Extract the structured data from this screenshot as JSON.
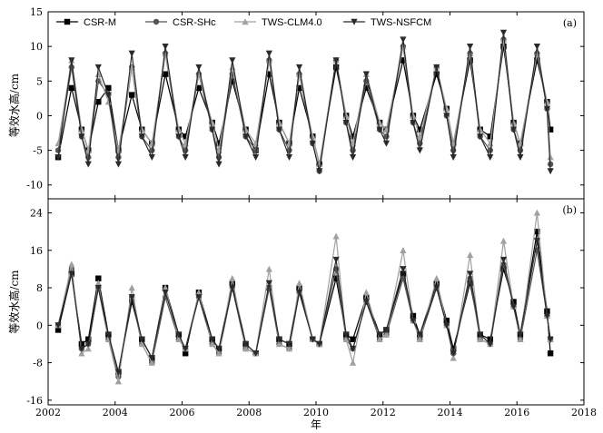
{
  "chart_data": {
    "type": "line",
    "xlabel": "年",
    "x_ticks": [
      2002,
      2004,
      2006,
      2008,
      2010,
      2012,
      2014,
      2016,
      2018
    ],
    "xlim": [
      2002,
      2018
    ],
    "legend": [
      {
        "name": "CSR-M",
        "color": "#000000",
        "marker": "square"
      },
      {
        "name": "CSR-SHc",
        "color": "#555555",
        "marker": "circle"
      },
      {
        "name": "TWS-CLM4.0",
        "color": "#a0a0a0",
        "marker": "triangle-up"
      },
      {
        "name": "TWS-NSFCM",
        "color": "#2a2a2a",
        "marker": "triangle-down"
      }
    ],
    "legend_position": "top",
    "panels": [
      {
        "tag": "(a)",
        "ylabel": "等效水高/cm",
        "ylim": [
          -12,
          15
        ],
        "y_ticks": [
          -10,
          -5,
          0,
          5,
          10,
          15
        ],
        "series": [
          {
            "name": "CSR-M",
            "x": [
              2002.3,
              2002.7,
              2003.0,
              2003.2,
              2003.5,
              2003.8,
              2004.1,
              2004.5,
              2004.8,
              2005.1,
              2005.5,
              2005.9,
              2006.1,
              2006.5,
              2006.9,
              2007.1,
              2007.5,
              2007.9,
              2008.2,
              2008.6,
              2008.9,
              2009.2,
              2009.5,
              2009.9,
              2010.1,
              2010.6,
              2010.9,
              2011.1,
              2011.5,
              2011.9,
              2012.1,
              2012.6,
              2012.9,
              2013.1,
              2013.6,
              2013.9,
              2014.1,
              2014.6,
              2014.9,
              2015.2,
              2015.6,
              2015.9,
              2016.1,
              2016.6,
              2016.9,
              2017.0
            ],
            "y": [
              -6,
              4,
              -2,
              -5,
              2,
              4,
              -5,
              3,
              -2,
              -4,
              6,
              -2,
              -3,
              4,
              -1,
              -4,
              5,
              -2,
              -5,
              6,
              -1,
              -4,
              4,
              -3,
              -7,
              7,
              0,
              -3,
              4,
              -1,
              -2,
              8,
              0,
              -2,
              6,
              1,
              -4,
              8,
              -2,
              -3,
              10,
              -1,
              -4,
              8,
              2,
              -2
            ]
          },
          {
            "name": "CSR-SHc",
            "x": [
              2002.3,
              2002.7,
              2003.0,
              2003.2,
              2003.5,
              2003.8,
              2004.1,
              2004.5,
              2004.8,
              2005.1,
              2005.5,
              2005.9,
              2006.1,
              2006.5,
              2006.9,
              2007.1,
              2007.5,
              2007.9,
              2008.2,
              2008.6,
              2008.9,
              2009.2,
              2009.5,
              2009.9,
              2010.1,
              2010.6,
              2010.9,
              2011.1,
              2011.5,
              2011.9,
              2012.1,
              2012.6,
              2012.9,
              2013.1,
              2013.6,
              2013.9,
              2014.1,
              2014.6,
              2014.9,
              2015.2,
              2015.6,
              2015.9,
              2016.1,
              2016.6,
              2016.9,
              2017.0
            ],
            "y": [
              -5,
              7,
              -3,
              -6,
              5,
              3,
              -6,
              7,
              -3,
              -5,
              9,
              -3,
              -5,
              6,
              -2,
              -6,
              6,
              -3,
              -5,
              8,
              -2,
              -5,
              6,
              -4,
              -8,
              8,
              -1,
              -5,
              5,
              -2,
              -3,
              10,
              -1,
              -4,
              7,
              0,
              -5,
              9,
              -3,
              -5,
              11,
              -2,
              -5,
              9,
              1,
              -7
            ]
          },
          {
            "name": "TWS-CLM4.0",
            "x": [
              2002.3,
              2002.7,
              2003.0,
              2003.2,
              2003.5,
              2003.8,
              2004.1,
              2004.5,
              2004.8,
              2005.1,
              2005.5,
              2005.9,
              2006.1,
              2006.5,
              2006.9,
              2007.1,
              2007.5,
              2007.9,
              2008.2,
              2008.6,
              2008.9,
              2009.2,
              2009.5,
              2009.9,
              2010.1,
              2010.6,
              2010.9,
              2011.1,
              2011.5,
              2011.9,
              2012.1,
              2012.6,
              2012.9,
              2013.1,
              2013.6,
              2013.9,
              2014.1,
              2014.6,
              2014.9,
              2015.2,
              2015.6,
              2015.9,
              2016.1,
              2016.6,
              2016.9,
              2017.0
            ],
            "y": [
              -4,
              8,
              -2,
              -5,
              6,
              2,
              -5,
              7,
              -2,
              -4,
              9,
              -2,
              -4,
              6,
              -1,
              -5,
              7,
              -2,
              -4,
              8,
              -1,
              -4,
              6,
              -3,
              -7,
              8,
              0,
              -4,
              6,
              -1,
              -2,
              10,
              0,
              -3,
              7,
              1,
              -4,
              9,
              -2,
              -4,
              11,
              -1,
              -4,
              9,
              2,
              -6
            ]
          },
          {
            "name": "TWS-NSFCM",
            "x": [
              2002.3,
              2002.7,
              2003.0,
              2003.2,
              2003.5,
              2003.8,
              2004.1,
              2004.5,
              2004.8,
              2005.1,
              2005.5,
              2005.9,
              2006.1,
              2006.5,
              2006.9,
              2007.1,
              2007.5,
              2007.9,
              2008.2,
              2008.6,
              2008.9,
              2009.2,
              2009.5,
              2009.9,
              2010.1,
              2010.6,
              2010.9,
              2011.1,
              2011.5,
              2011.9,
              2012.1,
              2012.6,
              2012.9,
              2013.1,
              2013.6,
              2013.9,
              2014.1,
              2014.6,
              2014.9,
              2015.2,
              2015.6,
              2015.9,
              2016.1,
              2016.6,
              2016.9,
              2017.0
            ],
            "y": [
              -6,
              8,
              -3,
              -7,
              7,
              3,
              -7,
              9,
              -3,
              -6,
              10,
              -3,
              -6,
              7,
              -2,
              -7,
              8,
              -3,
              -6,
              9,
              -2,
              -6,
              7,
              -4,
              -8,
              8,
              -1,
              -6,
              6,
              -2,
              -4,
              11,
              -1,
              -5,
              7,
              0,
              -6,
              10,
              -3,
              -6,
              12,
              -2,
              -6,
              10,
              1,
              -8
            ]
          }
        ]
      },
      {
        "tag": "(b)",
        "ylabel": "等效水高/cm",
        "ylim": [
          -17,
          27
        ],
        "y_ticks": [
          -16,
          -8,
          0,
          8,
          16,
          24
        ],
        "series": [
          {
            "name": "CSR-M",
            "x": [
              2002.3,
              2002.7,
              2003.0,
              2003.2,
              2003.5,
              2003.8,
              2004.1,
              2004.5,
              2004.8,
              2005.1,
              2005.5,
              2005.9,
              2006.1,
              2006.5,
              2006.9,
              2007.1,
              2007.5,
              2007.9,
              2008.2,
              2008.6,
              2008.9,
              2009.2,
              2009.5,
              2009.9,
              2010.1,
              2010.6,
              2010.9,
              2011.1,
              2011.5,
              2011.9,
              2012.1,
              2012.6,
              2012.9,
              2013.1,
              2013.6,
              2013.9,
              2014.1,
              2014.6,
              2014.9,
              2015.2,
              2015.6,
              2015.9,
              2016.1,
              2016.6,
              2016.9,
              2017.0
            ],
            "y": [
              -1,
              11,
              -4,
              -3,
              10,
              -2,
              -10,
              5,
              -3,
              -7,
              8,
              -2,
              -6,
              7,
              -3,
              -5,
              9,
              -4,
              -6,
              8,
              -3,
              -4,
              8,
              -3,
              -4,
              10,
              -2,
              -3,
              6,
              -2,
              -1,
              11,
              2,
              -2,
              9,
              1,
              -5,
              9,
              -2,
              -3,
              12,
              5,
              -2,
              20,
              3,
              -6
            ]
          },
          {
            "name": "CSR-SHc",
            "x": [
              2002.3,
              2002.7,
              2003.0,
              2003.2,
              2003.5,
              2003.8,
              2004.1,
              2004.5,
              2004.8,
              2005.1,
              2005.5,
              2005.9,
              2006.1,
              2006.5,
              2006.9,
              2007.1,
              2007.5,
              2007.9,
              2008.2,
              2008.6,
              2008.9,
              2009.2,
              2009.5,
              2009.9,
              2010.1,
              2010.6,
              2010.9,
              2011.1,
              2011.5,
              2011.9,
              2012.1,
              2012.6,
              2012.9,
              2013.1,
              2013.6,
              2013.9,
              2014.1,
              2014.6,
              2014.9,
              2015.2,
              2015.6,
              2015.9,
              2016.1,
              2016.6,
              2016.9,
              2017.0
            ],
            "y": [
              0,
              12,
              -5,
              -4,
              8,
              -3,
              -11,
              6,
              -4,
              -8,
              6,
              -3,
              -5,
              6,
              -4,
              -6,
              8,
              -5,
              -6,
              8,
              -4,
              -5,
              7,
              -3,
              -4,
              12,
              -3,
              -5,
              5,
              -3,
              -2,
              10,
              1,
              -3,
              8,
              0,
              -6,
              10,
              -3,
              -4,
              13,
              4,
              -3,
              16,
              2,
              -3
            ]
          },
          {
            "name": "TWS-CLM4.0",
            "x": [
              2002.3,
              2002.7,
              2003.0,
              2003.2,
              2003.5,
              2003.8,
              2004.1,
              2004.5,
              2004.8,
              2005.1,
              2005.5,
              2005.9,
              2006.1,
              2006.5,
              2006.9,
              2007.1,
              2007.5,
              2007.9,
              2008.2,
              2008.6,
              2008.9,
              2009.2,
              2009.5,
              2009.9,
              2010.1,
              2010.6,
              2010.9,
              2011.1,
              2011.5,
              2011.9,
              2012.1,
              2012.6,
              2012.9,
              2013.1,
              2013.6,
              2013.9,
              2014.1,
              2014.6,
              2014.9,
              2015.2,
              2015.6,
              2015.9,
              2016.1,
              2016.6,
              2016.9,
              2017.0
            ],
            "y": [
              0,
              13,
              -6,
              -5,
              9,
              -3,
              -12,
              8,
              -4,
              -8,
              8,
              -3,
              -5,
              7,
              -4,
              -6,
              10,
              -5,
              -6,
              12,
              -4,
              -5,
              9,
              -3,
              -4,
              19,
              -3,
              -8,
              7,
              -3,
              -2,
              16,
              1,
              -3,
              10,
              0,
              -7,
              15,
              -3,
              -4,
              18,
              4,
              -3,
              24,
              2,
              -3
            ]
          },
          {
            "name": "TWS-NSFCM",
            "x": [
              2002.3,
              2002.7,
              2003.0,
              2003.2,
              2003.5,
              2003.8,
              2004.1,
              2004.5,
              2004.8,
              2005.1,
              2005.5,
              2005.9,
              2006.1,
              2006.5,
              2006.9,
              2007.1,
              2007.5,
              2007.9,
              2008.2,
              2008.6,
              2008.9,
              2009.2,
              2009.5,
              2009.9,
              2010.1,
              2010.6,
              2010.9,
              2011.1,
              2011.5,
              2011.9,
              2012.1,
              2012.6,
              2012.9,
              2013.1,
              2013.6,
              2013.9,
              2014.1,
              2014.6,
              2014.9,
              2015.2,
              2015.6,
              2015.9,
              2016.1,
              2016.6,
              2016.9,
              2017.0
            ],
            "y": [
              0,
              11,
              -5,
              -4,
              8,
              -2,
              -10,
              6,
              -3,
              -7,
              7,
              -2,
              -5,
              6,
              -3,
              -5,
              8,
              -4,
              -6,
              9,
              -3,
              -4,
              7,
              -3,
              -4,
              14,
              -2,
              -5,
              5,
              -2,
              -1,
              12,
              1,
              -2,
              8,
              0,
              -6,
              11,
              -2,
              -4,
              14,
              4,
              -2,
              18,
              2,
              -3
            ]
          }
        ]
      }
    ]
  }
}
